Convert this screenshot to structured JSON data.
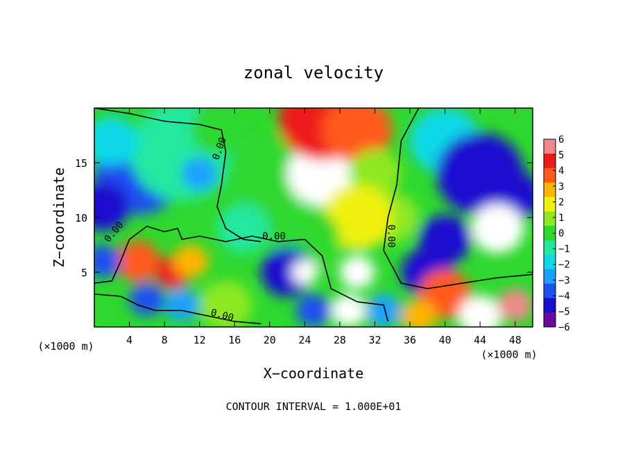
{
  "chart_data": {
    "type": "heatmap",
    "title": "zonal velocity",
    "xlabel": "X−coordinate",
    "ylabel": "Z−coordinate",
    "x_unit_left": "(×1000 m)",
    "x_unit_right": "(×1000 m)",
    "footer": "CONTOUR INTERVAL = 1.000E+01",
    "xlim": [
      0,
      50
    ],
    "ylim": [
      0,
      20
    ],
    "x_ticks": [
      4,
      8,
      12,
      16,
      20,
      24,
      28,
      32,
      36,
      40,
      44,
      48
    ],
    "y_ticks": [
      5,
      10,
      15
    ],
    "colorbar": {
      "ticks": [
        6,
        5,
        4,
        3,
        2,
        1,
        0,
        -1,
        -2,
        -3,
        -4,
        -5,
        -6
      ],
      "tick_labels": [
        "6",
        "5",
        "4",
        "3",
        "2",
        "1",
        "0",
        "−1",
        "−2",
        "−3",
        "−4",
        "−5",
        "−6"
      ],
      "range": [
        -6,
        6
      ],
      "colors": [
        "#6a0a9a",
        "#1a0fd0",
        "#1e50f0",
        "#1aa0ff",
        "#10d8e8",
        "#20e8a0",
        "#2ed82e",
        "#8ee820",
        "#f0f010",
        "#ffb400",
        "#ff5a1a",
        "#ee1a1a",
        "#f08a8a"
      ]
    },
    "contour_labels": [
      "0.00",
      "0.00",
      "0.00",
      "0.00",
      "0.00"
    ],
    "regions": [
      {
        "x": 5,
        "z": 14,
        "value": -3.5,
        "r": 5
      },
      {
        "x": 1,
        "z": 11,
        "value": -5,
        "r": 3
      },
      {
        "x": 10,
        "z": 16,
        "value": -1,
        "r": 6
      },
      {
        "x": 12,
        "z": 14,
        "value": -2.5,
        "r": 2
      },
      {
        "x": 20,
        "z": 14,
        "value": 0.5,
        "r": 5
      },
      {
        "x": 26,
        "z": 14,
        "value": 7,
        "r": 4
      },
      {
        "x": 26,
        "z": 19,
        "value": 5,
        "r": 5
      },
      {
        "x": 30,
        "z": 18,
        "value": 4,
        "r": 4
      },
      {
        "x": 32,
        "z": 14,
        "value": 1.5,
        "r": 3
      },
      {
        "x": 34,
        "z": 10,
        "value": 1,
        "r": 3
      },
      {
        "x": 40,
        "z": 17,
        "value": -2,
        "r": 4
      },
      {
        "x": 44,
        "z": 14,
        "value": -4.5,
        "r": 5
      },
      {
        "x": 48,
        "z": 12,
        "value": -5,
        "r": 3
      },
      {
        "x": 46,
        "z": 9,
        "value": -6.5,
        "r": 3
      },
      {
        "x": 40,
        "z": 8,
        "value": -5,
        "r": 3
      },
      {
        "x": 38,
        "z": 5,
        "value": -4.5,
        "r": 3
      },
      {
        "x": 30,
        "z": 10,
        "value": 2.5,
        "r": 4
      },
      {
        "x": 24,
        "z": 8,
        "value": 0,
        "r": 4
      },
      {
        "x": 22,
        "z": 5,
        "value": -5,
        "r": 3
      },
      {
        "x": 24,
        "z": 5,
        "value": -7,
        "r": 1.5
      },
      {
        "x": 30,
        "z": 5,
        "value": 6.5,
        "r": 2
      },
      {
        "x": 29,
        "z": 1.5,
        "value": -7,
        "r": 2
      },
      {
        "x": 25,
        "z": 1.5,
        "value": -4,
        "r": 2
      },
      {
        "x": 33,
        "z": 1.5,
        "value": -3,
        "r": 2
      },
      {
        "x": 5,
        "z": 6,
        "value": 4.5,
        "r": 2.5
      },
      {
        "x": 9,
        "z": 5,
        "value": 5.5,
        "r": 2
      },
      {
        "x": 11,
        "z": 6,
        "value": 3,
        "r": 2
      },
      {
        "x": 1,
        "z": 6,
        "value": -4,
        "r": 2
      },
      {
        "x": 6,
        "z": 2.5,
        "value": -4,
        "r": 2
      },
      {
        "x": 10,
        "z": 2,
        "value": -3,
        "r": 2
      },
      {
        "x": 15,
        "z": 2,
        "value": 1,
        "r": 3
      },
      {
        "x": 17,
        "z": 9,
        "value": -0.5,
        "r": 3
      },
      {
        "x": 40,
        "z": 3,
        "value": 4,
        "r": 3
      },
      {
        "x": 44,
        "z": 1,
        "value": 7,
        "r": 2.5
      },
      {
        "x": 48,
        "z": 2,
        "value": 6,
        "r": 2
      },
      {
        "x": 37,
        "z": 1,
        "value": 3,
        "r": 2
      },
      {
        "x": 2,
        "z": 17,
        "value": -1.5,
        "r": 3
      },
      {
        "x": 14,
        "z": 18,
        "value": 0.5,
        "r": 3
      }
    ],
    "zero_contours": [
      [
        [
          0,
          20
        ],
        [
          4,
          19.5
        ],
        [
          8,
          18.8
        ],
        [
          12,
          18.5
        ],
        [
          14.5,
          18
        ],
        [
          15,
          16
        ],
        [
          14.5,
          13
        ],
        [
          14,
          11
        ],
        [
          15,
          9
        ],
        [
          17,
          8
        ],
        [
          19,
          7.8
        ]
      ],
      [
        [
          0,
          4
        ],
        [
          2,
          4.2
        ],
        [
          3,
          6
        ],
        [
          4,
          8
        ],
        [
          6,
          9.2
        ],
        [
          8,
          8.7
        ],
        [
          9.5,
          9
        ],
        [
          10,
          8
        ],
        [
          12,
          8.3
        ],
        [
          15,
          7.8
        ],
        [
          18,
          8.3
        ],
        [
          21,
          7.8
        ],
        [
          24,
          8
        ],
        [
          26,
          6.5
        ],
        [
          27,
          3.5
        ],
        [
          30,
          2.3
        ],
        [
          33,
          2
        ],
        [
          33.5,
          0.5
        ]
      ],
      [
        [
          37,
          20
        ],
        [
          35,
          17
        ],
        [
          34.5,
          13
        ],
        [
          33.5,
          10
        ],
        [
          33,
          7
        ],
        [
          35,
          4
        ],
        [
          38,
          3.5
        ],
        [
          42,
          4
        ],
        [
          46,
          4.5
        ],
        [
          50,
          4.8
        ]
      ],
      [
        [
          0,
          3
        ],
        [
          3,
          2.8
        ],
        [
          5,
          2
        ],
        [
          7,
          1.5
        ],
        [
          10,
          1.5
        ],
        [
          13,
          1
        ],
        [
          16,
          0.5
        ],
        [
          19,
          0.3
        ]
      ]
    ]
  }
}
